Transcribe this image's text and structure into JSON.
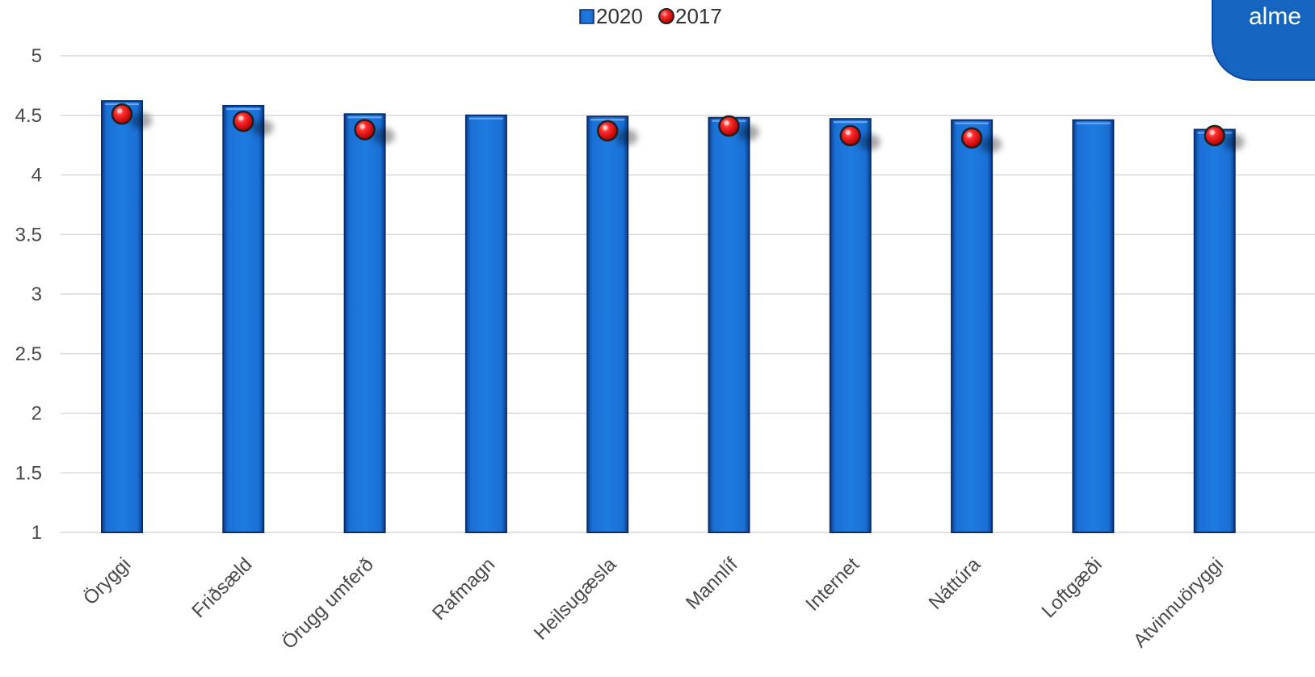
{
  "corner_badge": {
    "text": "alme"
  },
  "chart_data": {
    "type": "bar",
    "title": "",
    "xlabel": "",
    "ylabel": "",
    "ylim": [
      1,
      5
    ],
    "yticks": [
      "1",
      "1.5",
      "2",
      "2.5",
      "3",
      "3.5",
      "4",
      "4.5",
      "5"
    ],
    "grid": true,
    "legend_position": "top-center",
    "categories": [
      "Öryggi",
      "Friðsæld",
      "Örugg umferð",
      "Rafmagn",
      "Heilsugæsla",
      "Mannlíf",
      "Internet",
      "Náttúra",
      "Loftgæði",
      "Atvinnuöryggi"
    ],
    "series": [
      {
        "name": "2020",
        "type": "bar",
        "color": "#1565c0",
        "values": [
          4.62,
          4.58,
          4.51,
          4.5,
          4.49,
          4.48,
          4.47,
          4.46,
          4.46,
          4.38
        ]
      },
      {
        "name": "2017",
        "type": "scatter",
        "color": "#e53935",
        "values": [
          4.51,
          4.45,
          4.38,
          null,
          4.37,
          4.41,
          4.33,
          4.31,
          null,
          4.33
        ]
      }
    ]
  }
}
